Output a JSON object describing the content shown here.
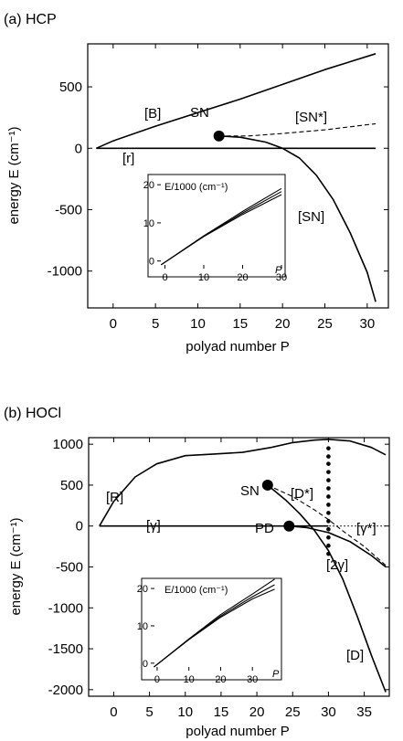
{
  "chart_data": [
    {
      "type": "line",
      "title": "(a) HCP",
      "xlabel": "polyad number P",
      "ylabel": "energy E (cm⁻¹)",
      "xlim": [
        -3,
        32.5
      ],
      "ylim": [
        -1300,
        850
      ],
      "xticks": [
        0,
        5,
        10,
        15,
        20,
        25,
        30
      ],
      "yticks": [
        500,
        0,
        -500,
        -1000
      ],
      "series": [
        {
          "name": "[B]",
          "style": "solid",
          "x": [
            -2,
            0,
            5,
            10,
            15,
            20,
            25,
            31
          ],
          "y": [
            0,
            60,
            180,
            290,
            400,
            520,
            640,
            770
          ]
        },
        {
          "name": "[r]",
          "style": "solid",
          "x": [
            -2,
            31
          ],
          "y": [
            0,
            0
          ]
        },
        {
          "name": "[SN*]",
          "style": "dashed",
          "x": [
            12.5,
            16,
            20,
            25,
            31
          ],
          "y": [
            100,
            100,
            120,
            150,
            200
          ]
        },
        {
          "name": "[SN]",
          "style": "solid",
          "x": [
            12.5,
            15,
            18,
            20,
            22,
            24,
            26,
            28,
            30,
            31
          ],
          "y": [
            100,
            90,
            50,
            0,
            -80,
            -220,
            -420,
            -690,
            -1010,
            -1250
          ]
        }
      ],
      "points": [
        {
          "name": "SN",
          "x": 12.5,
          "y": 100
        }
      ],
      "inset": {
        "xlabel": "P",
        "ylabel": "E/1000 (cm⁻¹)",
        "xticks": [
          0,
          10,
          20,
          30
        ],
        "yticks": [
          0,
          10,
          20
        ],
        "xlim": [
          -2,
          30
        ],
        "ylim": [
          -2,
          21
        ],
        "series": [
          {
            "x": [
              -1,
              10,
              20,
              30
            ],
            "y": [
              -1,
              6.6,
              13.0,
              19.0
            ]
          },
          {
            "x": [
              -1,
              10,
              20,
              30
            ],
            "y": [
              -1,
              6.5,
              12.6,
              18.2
            ]
          },
          {
            "x": [
              -1,
              10,
              20,
              30
            ],
            "y": [
              -1,
              6.4,
              12.2,
              17.4
            ]
          }
        ]
      }
    },
    {
      "type": "line",
      "title": "(b) HOCl",
      "xlabel": "polyad number P",
      "ylabel": "energy E (cm⁻¹)",
      "xlim": [
        -3.5,
        38.5
      ],
      "ylim": [
        -2080,
        1080
      ],
      "xticks": [
        0,
        5,
        10,
        15,
        20,
        25,
        30,
        35
      ],
      "yticks": [
        1000,
        500,
        0,
        -500,
        -1000,
        -1500,
        -2000
      ],
      "series": [
        {
          "name": "[R]",
          "style": "solid",
          "x": [
            -2,
            0,
            3,
            6,
            10,
            14,
            18,
            22,
            25,
            28,
            30,
            33,
            36,
            38
          ],
          "y": [
            0,
            300,
            600,
            760,
            860,
            880,
            900,
            960,
            1020,
            1050,
            1060,
            1040,
            960,
            870
          ]
        },
        {
          "name": "[γ]",
          "style": "solid",
          "x": [
            -2,
            30
          ],
          "y": [
            0,
            0
          ]
        },
        {
          "name": "[γ*]",
          "style": "dotted",
          "x": [
            24.5,
            38
          ],
          "y": [
            0,
            0
          ]
        },
        {
          "name": "[D*]",
          "style": "dashed",
          "x": [
            21.5,
            25,
            28,
            30,
            32,
            35,
            38
          ],
          "y": [
            500,
            360,
            200,
            80,
            -60,
            -250,
            -480
          ]
        },
        {
          "name": "[D]",
          "style": "solid",
          "x": [
            21.5,
            24,
            26,
            28,
            30,
            32,
            34,
            36,
            38
          ],
          "y": [
            500,
            320,
            150,
            -50,
            -300,
            -650,
            -1100,
            -1580,
            -2030
          ]
        },
        {
          "name": "[2γ]",
          "style": "solid",
          "x": [
            24.5,
            27,
            30,
            33,
            36,
            38
          ],
          "y": [
            0,
            -20,
            -80,
            -190,
            -360,
            -500
          ]
        }
      ],
      "points": [
        {
          "name": "SN",
          "x": 21.5,
          "y": 500
        },
        {
          "name": "PD",
          "x": 24.5,
          "y": 0
        }
      ],
      "dotted_vertical": {
        "x": 30,
        "y": [
          950,
          850,
          760,
          660,
          560,
          460,
          360,
          260,
          160,
          60,
          -40,
          -140,
          -240,
          -340
        ]
      },
      "inset": {
        "xlabel": "P",
        "ylabel": "E/1000 (cm⁻¹)",
        "xticks": [
          0,
          10,
          20,
          30
        ],
        "yticks": [
          0,
          10,
          20
        ],
        "xlim": [
          -2,
          38
        ],
        "ylim": [
          -2,
          21
        ],
        "series": [
          {
            "x": [
              -1,
              10,
              20,
              30,
              37
            ],
            "y": [
              -1,
              6.5,
              13.0,
              18.5,
              22.5
            ]
          },
          {
            "x": [
              -1,
              10,
              20,
              30,
              37
            ],
            "y": [
              -1,
              6.4,
              12.6,
              17.8,
              21.0
            ]
          },
          {
            "x": [
              -1,
              10,
              20,
              30,
              37
            ],
            "y": [
              -1,
              6.3,
              12.3,
              17.2,
              19.8
            ]
          }
        ]
      }
    }
  ],
  "labels": {
    "a": {
      "B": "[B]",
      "SNstar": "[SN*]",
      "SN": "SN",
      "r": "[r]",
      "SNbr": "[SN]"
    },
    "b": {
      "R": "[R]",
      "Dstar": "[D*]",
      "SN": "SN",
      "gamma": "[γ]",
      "PD": "PD",
      "gammastar": "[γ*]",
      "twogamma": "[2γ]",
      "D": "[D]"
    }
  }
}
